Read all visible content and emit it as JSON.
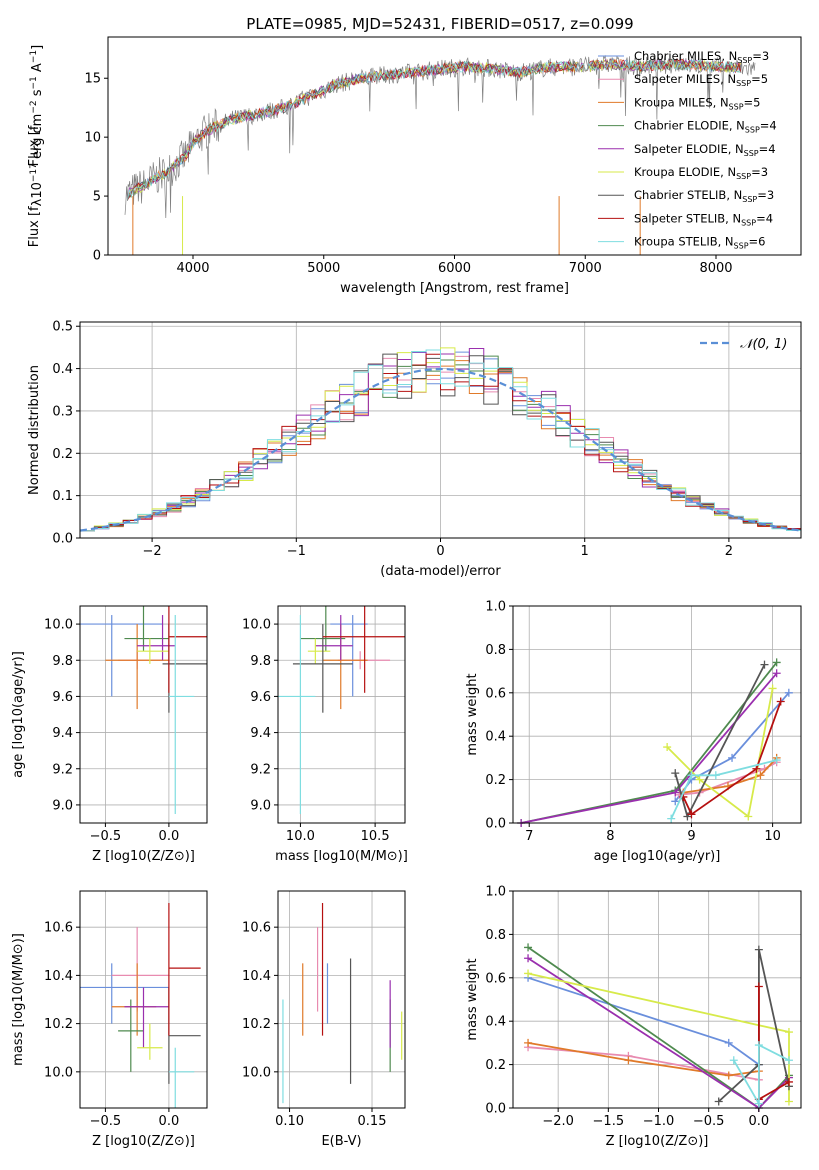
{
  "title": "PLATE=0985, MJD=52431, FIBERID=0517, z=0.099",
  "colors": {
    "Chabrier MILES": "#6a8fdc",
    "Salpeter MILES": "#e88bb0",
    "Kroupa MILES": "#e07a2a",
    "Chabrier ELODIE": "#4f8a4f",
    "Salpeter ELODIE": "#9a2fae",
    "Kroupa ELODIE": "#d7ea4a",
    "Chabrier STELIB": "#555555",
    "Salpeter STELIB": "#b51010",
    "Kroupa STELIB": "#7fdde0",
    "data": "#808080",
    "normal": "#5a8fd6",
    "grid": "#b0b0b0"
  },
  "chart_data": [
    {
      "type": "line",
      "title": "PLATE=0985, MJD=52431, FIBERID=0517, z=0.099",
      "xlabel": "wavelength [Angstrom, rest frame]",
      "ylabel": "Flux [f",
      "ylabel_full": "Flux [fλ10⁻¹⁷ erg cm⁻² s⁻¹ A⁻¹]",
      "xlim": [
        3350,
        8650
      ],
      "ylim": [
        0,
        18.5
      ],
      "xticks": [
        4000,
        5000,
        6000,
        7000,
        8000
      ],
      "yticks": [
        0,
        5,
        10,
        15
      ],
      "legend_position": "right",
      "spectrum_knots": {
        "x": [
          3480,
          3550,
          3650,
          3700,
          3800,
          3900,
          3950,
          4000,
          4100,
          4200,
          4300,
          4500,
          4700,
          4900,
          5100,
          5300,
          5500,
          5700,
          5900,
          6100,
          6300,
          6500,
          6700,
          7000,
          7200,
          7400,
          7700,
          8000,
          8300
        ],
        "y": [
          5.0,
          5.5,
          6.0,
          6.5,
          7.0,
          8.0,
          8.5,
          9.5,
          10.5,
          11.0,
          11.5,
          12.0,
          12.5,
          13.5,
          14.5,
          15.0,
          15.3,
          15.5,
          15.8,
          16.0,
          15.8,
          15.5,
          15.9,
          16.0,
          16.2,
          16.0,
          16.2,
          16.0,
          15.8
        ]
      },
      "series": [
        {
          "name": "Chabrier MILES",
          "nssp": "3"
        },
        {
          "name": "Salpeter MILES",
          "nssp": "5"
        },
        {
          "name": "Kroupa MILES",
          "nssp": "5"
        },
        {
          "name": "Chabrier ELODIE",
          "nssp": "4"
        },
        {
          "name": "Salpeter ELODIE",
          "nssp": "4"
        },
        {
          "name": "Kroupa ELODIE",
          "nssp": "3"
        },
        {
          "name": "Chabrier STELIB",
          "nssp": "3"
        },
        {
          "name": "Salpeter STELIB",
          "nssp": "4"
        },
        {
          "name": "Kroupa STELIB",
          "nssp": "6"
        }
      ]
    },
    {
      "type": "line",
      "xlabel": "(data-model)/error",
      "ylabel": "Normed distribution",
      "xlim": [
        -2.5,
        2.5
      ],
      "ylim": [
        0,
        0.51
      ],
      "xticks": [
        -2,
        -1,
        0,
        1,
        2
      ],
      "yticks": [
        0.0,
        0.1,
        0.2,
        0.3,
        0.4,
        0.5
      ],
      "legend": "𝒩(0, 1)",
      "legend_position": "top-right",
      "bin_width": 0.1
    },
    {
      "type": "scatter",
      "xlabel": "Z [log10(Z/Z⊙)]",
      "ylabel": "age  [log10(age/yr)]",
      "xlim": [
        -0.7,
        0.3
      ],
      "ylim": [
        8.9,
        10.1
      ],
      "xticks": [
        -0.5,
        0.0
      ],
      "yticks": [
        9.0,
        9.2,
        9.4,
        9.6,
        9.8,
        10.0
      ],
      "points": [
        {
          "name": "Chabrier MILES",
          "x": -0.45,
          "xlo": -0.7,
          "xhi": -0.05,
          "y": 10.0,
          "ylo": 9.6,
          "yhi": 10.05
        },
        {
          "name": "Salpeter MILES",
          "x": -0.25,
          "xlo": -0.4,
          "xhi": -0.05,
          "y": 9.8,
          "ylo": 9.75,
          "yhi": 9.85
        },
        {
          "name": "Kroupa MILES",
          "x": -0.25,
          "xlo": -0.5,
          "xhi": 0.0,
          "y": 9.8,
          "ylo": 9.53,
          "yhi": 10.0
        },
        {
          "name": "Chabrier ELODIE",
          "x": -0.2,
          "xlo": -0.35,
          "xhi": 0.0,
          "y": 9.92,
          "ylo": 9.85,
          "yhi": 10.1
        },
        {
          "name": "Salpeter ELODIE",
          "x": -0.05,
          "xlo": -0.25,
          "xhi": 0.05,
          "y": 9.88,
          "ylo": 9.8,
          "yhi": 10.05
        },
        {
          "name": "Kroupa ELODIE",
          "x": -0.15,
          "xlo": -0.25,
          "xhi": 0.0,
          "y": 9.85,
          "ylo": 9.78,
          "yhi": 9.92
        },
        {
          "name": "Chabrier STELIB",
          "x": 0.0,
          "xlo": -0.05,
          "xhi": 0.3,
          "y": 9.78,
          "ylo": 9.51,
          "yhi": 10.0
        },
        {
          "name": "Salpeter STELIB",
          "x": 0.0,
          "xlo": 0.0,
          "xhi": 0.3,
          "y": 9.93,
          "ylo": 9.62,
          "yhi": 10.1
        },
        {
          "name": "Kroupa STELIB",
          "x": 0.05,
          "xlo": 0.0,
          "xhi": 0.2,
          "y": 9.6,
          "ylo": 8.95,
          "yhi": 10.05
        }
      ]
    },
    {
      "type": "scatter",
      "xlabel": "mass [log10(M/M⊙)]",
      "xlim": [
        9.85,
        10.7
      ],
      "ylim": [
        8.9,
        10.1
      ],
      "xticks": [
        10.0,
        10.5
      ],
      "yticks": [
        9.0,
        9.2,
        9.4,
        9.6,
        9.8,
        10.0
      ],
      "points": [
        {
          "name": "Chabrier MILES",
          "x": 10.35,
          "xlo": 10.2,
          "xhi": 10.45,
          "y": 10.0,
          "ylo": 9.6,
          "yhi": 10.05
        },
        {
          "name": "Salpeter MILES",
          "x": 10.4,
          "xlo": 10.25,
          "xhi": 10.6,
          "y": 9.8,
          "ylo": 9.75,
          "yhi": 9.85
        },
        {
          "name": "Kroupa MILES",
          "x": 10.27,
          "xlo": 10.15,
          "xhi": 10.45,
          "y": 9.8,
          "ylo": 9.53,
          "yhi": 10.0
        },
        {
          "name": "Chabrier ELODIE",
          "x": 10.17,
          "xlo": 10.0,
          "xhi": 10.3,
          "y": 9.92,
          "ylo": 9.85,
          "yhi": 10.1
        },
        {
          "name": "Salpeter ELODIE",
          "x": 10.27,
          "xlo": 10.1,
          "xhi": 10.35,
          "y": 9.88,
          "ylo": 9.8,
          "yhi": 10.05
        },
        {
          "name": "Kroupa ELODIE",
          "x": 10.1,
          "xlo": 10.05,
          "xhi": 10.2,
          "y": 9.85,
          "ylo": 9.78,
          "yhi": 9.92
        },
        {
          "name": "Chabrier STELIB",
          "x": 10.15,
          "xlo": 9.95,
          "xhi": 10.35,
          "y": 9.78,
          "ylo": 9.51,
          "yhi": 10.0
        },
        {
          "name": "Salpeter STELIB",
          "x": 10.43,
          "xlo": 10.15,
          "xhi": 10.7,
          "y": 9.93,
          "ylo": 9.62,
          "yhi": 10.1
        },
        {
          "name": "Kroupa STELIB",
          "x": 10.0,
          "xlo": 9.85,
          "xhi": 10.1,
          "y": 9.6,
          "ylo": 8.95,
          "yhi": 10.05
        }
      ]
    },
    {
      "type": "line",
      "xlabel": "age  [log10(age/yr)]",
      "ylabel": "mass weight",
      "xlim": [
        6.8,
        10.35
      ],
      "ylim": [
        0,
        1.0
      ],
      "xticks": [
        7,
        8,
        9,
        10
      ],
      "yticks": [
        0.0,
        0.2,
        0.4,
        0.6,
        0.8,
        1.0
      ],
      "series": [
        {
          "name": "Chabrier MILES",
          "x": [
            8.8,
            9.0,
            9.5,
            10.2
          ],
          "y": [
            0.1,
            0.2,
            0.3,
            0.6
          ]
        },
        {
          "name": "Salpeter MILES",
          "x": [
            8.85,
            9.1,
            9.9,
            10.05
          ],
          "y": [
            0.13,
            0.14,
            0.25,
            0.28
          ]
        },
        {
          "name": "Kroupa MILES",
          "x": [
            8.9,
            9.45,
            9.85,
            10.05
          ],
          "y": [
            0.14,
            0.17,
            0.22,
            0.3
          ]
        },
        {
          "name": "Chabrier ELODIE",
          "x": [
            6.9,
            8.8,
            10.05
          ],
          "y": [
            0.0,
            0.15,
            0.74
          ]
        },
        {
          "name": "Salpeter ELODIE",
          "x": [
            6.9,
            8.8,
            10.05
          ],
          "y": [
            0.0,
            0.14,
            0.69
          ]
        },
        {
          "name": "Kroupa ELODIE",
          "x": [
            8.7,
            9.1,
            9.7,
            10.0
          ],
          "y": [
            0.35,
            0.2,
            0.03,
            0.62
          ]
        },
        {
          "name": "Chabrier STELIB",
          "x": [
            8.8,
            8.95,
            9.9
          ],
          "y": [
            0.23,
            0.03,
            0.73
          ]
        },
        {
          "name": "Salpeter STELIB",
          "x": [
            8.9,
            9.0,
            9.8,
            10.1
          ],
          "y": [
            0.12,
            0.04,
            0.25,
            0.56
          ]
        },
        {
          "name": "Kroupa STELIB",
          "x": [
            8.75,
            9.0,
            9.3,
            10.05
          ],
          "y": [
            0.02,
            0.22,
            0.22,
            0.29
          ]
        }
      ]
    },
    {
      "type": "scatter",
      "xlabel": "Z [log10(Z/Z⊙)]",
      "ylabel": "mass [log10(M/M⊙)]",
      "xlim": [
        -0.7,
        0.3
      ],
      "ylim": [
        9.85,
        10.75
      ],
      "xticks": [
        -0.5,
        0.0
      ],
      "yticks": [
        10.0,
        10.2,
        10.4,
        10.6
      ],
      "points": [
        {
          "name": "Chabrier MILES",
          "x": -0.45,
          "xlo": -0.7,
          "xhi": 0.0,
          "y": 10.35,
          "ylo": 10.2,
          "yhi": 10.45
        },
        {
          "name": "Salpeter MILES",
          "x": -0.25,
          "xlo": -0.45,
          "xhi": 0.0,
          "y": 10.4,
          "ylo": 10.25,
          "yhi": 10.6
        },
        {
          "name": "Kroupa MILES",
          "x": -0.25,
          "xlo": -0.45,
          "xhi": -0.1,
          "y": 10.27,
          "ylo": 10.15,
          "yhi": 10.45
        },
        {
          "name": "Chabrier ELODIE",
          "x": -0.3,
          "xlo": -0.4,
          "xhi": -0.2,
          "y": 10.17,
          "ylo": 10.0,
          "yhi": 10.3
        },
        {
          "name": "Salpeter ELODIE",
          "x": -0.2,
          "xlo": -0.35,
          "xhi": 0.0,
          "y": 10.27,
          "ylo": 10.1,
          "yhi": 10.35
        },
        {
          "name": "Kroupa ELODIE",
          "x": -0.15,
          "xlo": -0.25,
          "xhi": -0.05,
          "y": 10.1,
          "ylo": 10.05,
          "yhi": 10.2
        },
        {
          "name": "Chabrier STELIB",
          "x": 0.0,
          "xlo": 0.0,
          "xhi": 0.25,
          "y": 10.15,
          "ylo": 9.95,
          "yhi": 10.35
        },
        {
          "name": "Salpeter STELIB",
          "x": 0.0,
          "xlo": 0.0,
          "xhi": 0.25,
          "y": 10.43,
          "ylo": 10.15,
          "yhi": 10.7
        },
        {
          "name": "Kroupa STELIB",
          "x": 0.05,
          "xlo": 0.0,
          "xhi": 0.2,
          "y": 10.0,
          "ylo": 9.85,
          "yhi": 10.1
        }
      ]
    },
    {
      "type": "scatter",
      "xlabel": "E(B-V)",
      "xlim": [
        0.093,
        0.17
      ],
      "ylim": [
        9.85,
        10.75
      ],
      "xticks": [
        0.1,
        0.15
      ],
      "yticks": [
        10.0,
        10.2,
        10.4,
        10.6
      ],
      "points": [
        {
          "name": "Chabrier MILES",
          "x": 0.123,
          "ylo": 10.2,
          "yhi": 10.45
        },
        {
          "name": "Salpeter MILES",
          "x": 0.117,
          "ylo": 10.25,
          "yhi": 10.6
        },
        {
          "name": "Kroupa MILES",
          "x": 0.108,
          "ylo": 10.15,
          "yhi": 10.45
        },
        {
          "name": "Chabrier ELODIE",
          "x": 0.161,
          "ylo": 10.0,
          "yhi": 10.3
        },
        {
          "name": "Salpeter ELODIE",
          "x": 0.161,
          "ylo": 10.1,
          "yhi": 10.38
        },
        {
          "name": "Kroupa ELODIE",
          "x": 0.168,
          "ylo": 10.05,
          "yhi": 10.25
        },
        {
          "name": "Chabrier STELIB",
          "x": 0.137,
          "ylo": 9.95,
          "yhi": 10.47
        },
        {
          "name": "Salpeter STELIB",
          "x": 0.12,
          "ylo": 10.15,
          "yhi": 10.7
        },
        {
          "name": "Kroupa STELIB",
          "x": 0.096,
          "ylo": 9.87,
          "yhi": 10.3
        }
      ]
    },
    {
      "type": "line",
      "xlabel": "Z [log10(Z/Z⊙)]",
      "ylabel": "mass weight",
      "xlim": [
        -2.45,
        0.42
      ],
      "ylim": [
        0,
        1.0
      ],
      "xticks": [
        -2.0,
        -1.5,
        -1.0,
        -0.5,
        0.0
      ],
      "yticks": [
        0.0,
        0.2,
        0.4,
        0.6,
        0.8,
        1.0
      ],
      "series": [
        {
          "name": "Chabrier MILES",
          "x": [
            -2.3,
            -0.3,
            0.0
          ],
          "y": [
            0.6,
            0.3,
            0.2
          ]
        },
        {
          "name": "Salpeter MILES",
          "x": [
            -2.3,
            -1.3,
            0.0
          ],
          "y": [
            0.28,
            0.24,
            0.13
          ]
        },
        {
          "name": "Kroupa MILES",
          "x": [
            -2.3,
            -1.3,
            -0.3,
            0.0
          ],
          "y": [
            0.3,
            0.22,
            0.15,
            0.17
          ]
        },
        {
          "name": "Chabrier ELODIE",
          "x": [
            -2.3,
            0.0,
            0.3
          ],
          "y": [
            0.74,
            0.0,
            0.15
          ]
        },
        {
          "name": "Salpeter ELODIE",
          "x": [
            -2.3,
            0.0,
            0.3
          ],
          "y": [
            0.69,
            0.0,
            0.14
          ]
        },
        {
          "name": "Kroupa ELODIE",
          "x": [
            -2.3,
            0.3,
            0.3
          ],
          "y": [
            0.62,
            0.35,
            0.03
          ]
        },
        {
          "name": "Chabrier STELIB",
          "x": [
            -0.4,
            0.0,
            0.0,
            0.3
          ],
          "y": [
            0.03,
            0.2,
            0.73,
            0.1
          ]
        },
        {
          "name": "Salpeter STELIB",
          "x": [
            0.0,
            0.0,
            0.3
          ],
          "y": [
            0.56,
            0.04,
            0.12
          ]
        },
        {
          "name": "Kroupa STELIB",
          "x": [
            -0.25,
            0.0,
            0.0,
            0.3
          ],
          "y": [
            0.22,
            0.02,
            0.29,
            0.22
          ]
        }
      ]
    }
  ]
}
